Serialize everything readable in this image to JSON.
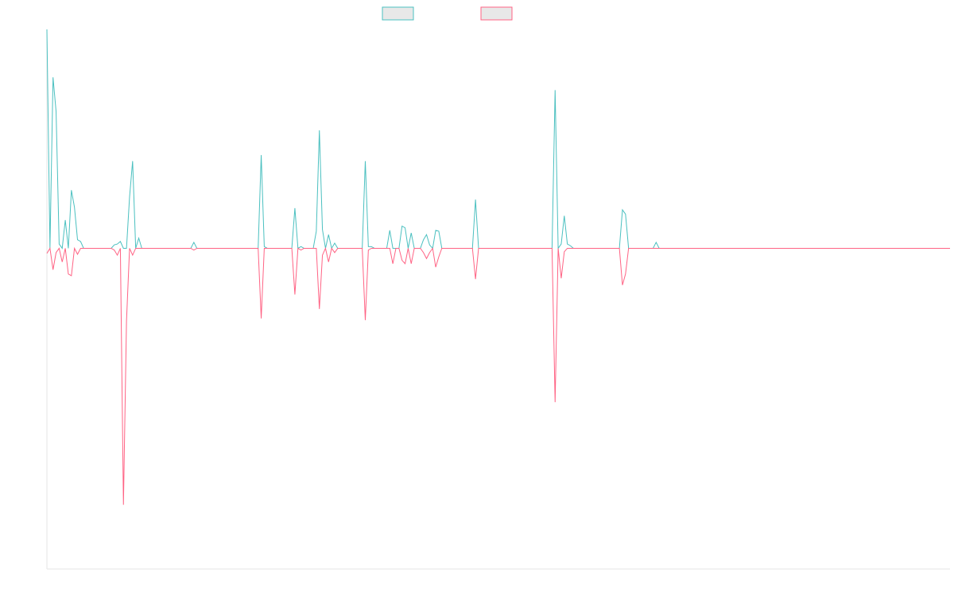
{
  "chart_data": {
    "type": "line",
    "title": "",
    "xlabel": "",
    "ylabel": "",
    "x_range": [
      0,
      295
    ],
    "ylim": [
      -375,
      256
    ],
    "grid": false,
    "legend_position": "top-center",
    "series": [
      {
        "color": "#4bc0c0",
        "fill": "#e8e8e8",
        "points": [
          [
            0,
            256
          ],
          [
            1,
            0
          ],
          [
            2,
            200
          ],
          [
            3,
            160
          ],
          [
            4,
            5
          ],
          [
            5,
            0
          ],
          [
            6,
            33
          ],
          [
            7,
            0
          ],
          [
            8,
            68
          ],
          [
            9,
            48
          ],
          [
            10,
            10
          ],
          [
            11,
            8
          ],
          [
            12,
            0
          ],
          [
            13,
            0
          ],
          [
            20,
            0
          ],
          [
            21,
            0
          ],
          [
            22,
            4
          ],
          [
            23,
            5
          ],
          [
            24,
            8
          ],
          [
            25,
            0
          ],
          [
            26,
            0
          ],
          [
            27,
            60
          ],
          [
            28,
            102
          ],
          [
            29,
            0
          ],
          [
            30,
            12
          ],
          [
            31,
            0
          ],
          [
            32,
            0
          ],
          [
            47,
            0
          ],
          [
            48,
            7
          ],
          [
            49,
            0
          ],
          [
            69,
            0
          ],
          [
            70,
            109
          ],
          [
            71,
            2
          ],
          [
            72,
            0
          ],
          [
            80,
            0
          ],
          [
            81,
            47
          ],
          [
            82,
            0
          ],
          [
            83,
            2
          ],
          [
            84,
            0
          ],
          [
            87,
            0
          ],
          [
            88,
            20
          ],
          [
            89,
            138
          ],
          [
            90,
            22
          ],
          [
            91,
            0
          ],
          [
            92,
            16
          ],
          [
            93,
            0
          ],
          [
            94,
            6
          ],
          [
            95,
            0
          ],
          [
            103,
            0
          ],
          [
            104,
            102
          ],
          [
            105,
            2
          ],
          [
            106,
            2
          ],
          [
            107,
            0
          ],
          [
            111,
            0
          ],
          [
            112,
            21
          ],
          [
            113,
            0
          ],
          [
            115,
            0
          ],
          [
            116,
            26
          ],
          [
            117,
            24
          ],
          [
            118,
            0
          ],
          [
            119,
            18
          ],
          [
            120,
            0
          ],
          [
            122,
            0
          ],
          [
            123,
            10
          ],
          [
            124,
            16
          ],
          [
            125,
            4
          ],
          [
            126,
            0
          ],
          [
            127,
            21
          ],
          [
            128,
            20
          ],
          [
            129,
            0
          ],
          [
            139,
            0
          ],
          [
            140,
            57
          ],
          [
            141,
            0
          ],
          [
            165,
            0
          ],
          [
            166,
            185
          ],
          [
            167,
            0
          ],
          [
            168,
            5
          ],
          [
            169,
            38
          ],
          [
            170,
            5
          ],
          [
            171,
            3
          ],
          [
            172,
            0
          ],
          [
            187,
            0
          ],
          [
            188,
            45
          ],
          [
            189,
            40
          ],
          [
            190,
            0
          ],
          [
            198,
            0
          ],
          [
            199,
            7
          ],
          [
            200,
            0
          ],
          [
            295,
            0
          ]
        ]
      },
      {
        "color": "#ff6384",
        "fill": "#e8e8e8",
        "points": [
          [
            0,
            -6
          ],
          [
            1,
            0
          ],
          [
            2,
            -25
          ],
          [
            3,
            -5
          ],
          [
            4,
            0
          ],
          [
            5,
            -16
          ],
          [
            6,
            0
          ],
          [
            7,
            -30
          ],
          [
            8,
            -32
          ],
          [
            9,
            0
          ],
          [
            10,
            -7
          ],
          [
            11,
            0
          ],
          [
            12,
            0
          ],
          [
            21,
            0
          ],
          [
            22,
            -2
          ],
          [
            23,
            -8
          ],
          [
            24,
            0
          ],
          [
            25,
            -300
          ],
          [
            26,
            -85
          ],
          [
            27,
            0
          ],
          [
            28,
            -8
          ],
          [
            29,
            0
          ],
          [
            47,
            0
          ],
          [
            48,
            -2
          ],
          [
            49,
            0
          ],
          [
            69,
            0
          ],
          [
            70,
            -82
          ],
          [
            71,
            0
          ],
          [
            80,
            0
          ],
          [
            81,
            -54
          ],
          [
            82,
            0
          ],
          [
            83,
            -2
          ],
          [
            84,
            0
          ],
          [
            88,
            0
          ],
          [
            89,
            -71
          ],
          [
            90,
            -8
          ],
          [
            91,
            0
          ],
          [
            92,
            -16
          ],
          [
            93,
            0
          ],
          [
            94,
            -5
          ],
          [
            95,
            0
          ],
          [
            103,
            0
          ],
          [
            104,
            -84
          ],
          [
            105,
            -2
          ],
          [
            106,
            0
          ],
          [
            112,
            0
          ],
          [
            113,
            -18
          ],
          [
            114,
            0
          ],
          [
            115,
            0
          ],
          [
            116,
            -14
          ],
          [
            117,
            -18
          ],
          [
            118,
            0
          ],
          [
            119,
            -18
          ],
          [
            120,
            0
          ],
          [
            122,
            0
          ],
          [
            123,
            -5
          ],
          [
            124,
            -12
          ],
          [
            125,
            -5
          ],
          [
            126,
            0
          ],
          [
            127,
            -22
          ],
          [
            128,
            -10
          ],
          [
            129,
            0
          ],
          [
            139,
            0
          ],
          [
            140,
            -36
          ],
          [
            141,
            0
          ],
          [
            165,
            0
          ],
          [
            166,
            -180
          ],
          [
            167,
            0
          ],
          [
            168,
            -35
          ],
          [
            169,
            -4
          ],
          [
            170,
            0
          ],
          [
            171,
            0
          ],
          [
            187,
            0
          ],
          [
            188,
            -43
          ],
          [
            189,
            -30
          ],
          [
            190,
            0
          ],
          [
            295,
            0
          ]
        ]
      }
    ]
  }
}
